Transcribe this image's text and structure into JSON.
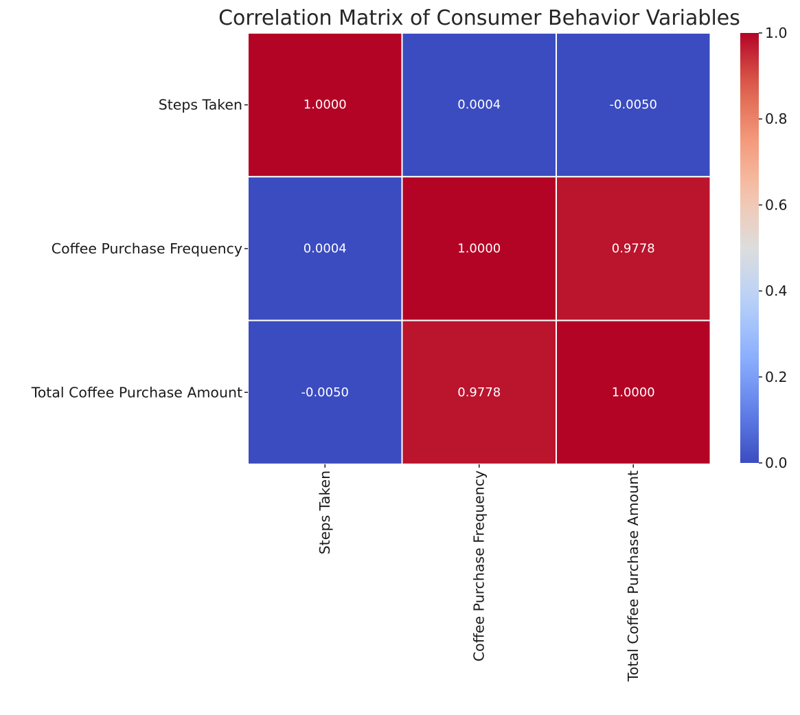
{
  "chart_data": {
    "type": "heatmap",
    "title": "Correlation Matrix of Consumer Behavior Variables",
    "xlabel": "",
    "ylabel": "",
    "row_labels": [
      "Steps Taken",
      "Coffee Purchase Frequency",
      "Total Coffee Purchase Amount"
    ],
    "col_labels": [
      "Steps Taken",
      "Coffee Purchase Frequency",
      "Total Coffee Purchase Amount"
    ],
    "matrix": [
      [
        1.0,
        0.0004,
        -0.005
      ],
      [
        0.0004,
        1.0,
        0.9778
      ],
      [
        -0.005,
        0.9778,
        1.0
      ]
    ],
    "cell_labels": [
      [
        "1.0000",
        "0.0004",
        "-0.0050"
      ],
      [
        "0.0004",
        "1.0000",
        "0.9778"
      ],
      [
        "-0.0050",
        "0.9778",
        "1.0000"
      ]
    ],
    "colormap": "coolwarm",
    "vmin": 0.0,
    "vmax": 1.0,
    "colorbar": {
      "ticks": [
        0.0,
        0.2,
        0.4,
        0.6,
        0.8,
        1.0
      ],
      "tick_labels": [
        "0.0",
        "0.2",
        "0.4",
        "0.6",
        "0.8",
        "1.0"
      ]
    },
    "grid": false,
    "cell_border_color": "#ffffff"
  }
}
